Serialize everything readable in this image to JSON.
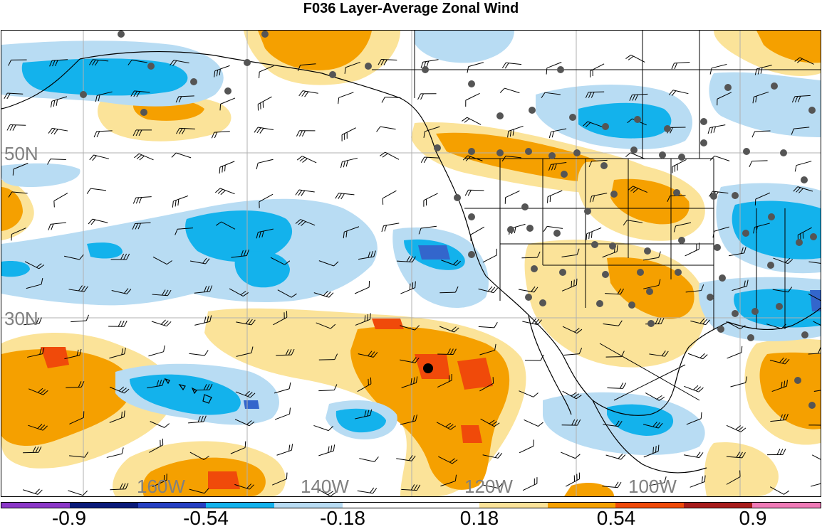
{
  "title": "F036 Layer-Average Zonal Wind",
  "map": {
    "lat_labels": [
      "50N",
      "30N"
    ],
    "lon_labels": [
      "160W",
      "140W",
      "120W",
      "100W"
    ],
    "colors": {
      "orange": "#f5a000",
      "red": "#f04a0a",
      "tan": "#fbe399",
      "light_blue": "#b8dcf3",
      "medium_blue": "#13b2ec",
      "blue": "#3366cc",
      "grid": "#b0b0b0",
      "station": "#555555"
    },
    "marker": "black-dot"
  },
  "colorbar": {
    "colors": [
      "#8b37c8",
      "#0a1a7a",
      "#2640c3",
      "#13b2ec",
      "#b8dcf3",
      "#ffffff",
      "#ffffff",
      "#fbe399",
      "#f5a000",
      "#f04a0a",
      "#a81c1c",
      "#f07ab7"
    ],
    "labels": [
      "-0.9",
      "-0.54",
      "-0.18",
      "0.18",
      "0.54",
      "0.9"
    ]
  }
}
